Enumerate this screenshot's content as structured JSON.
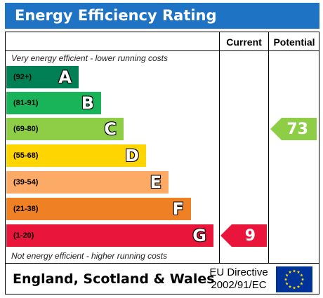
{
  "title": "Energy Efficiency Rating",
  "columns": {
    "current": "Current",
    "potential": "Potential"
  },
  "top_note": "Very energy efficient - lower running costs",
  "bottom_note": "Not energy efficient - higher running costs",
  "bands": [
    {
      "range": "(92+)",
      "letter": "A",
      "color": "#008054"
    },
    {
      "range": "(81-91)",
      "letter": "B",
      "color": "#19b459"
    },
    {
      "range": "(69-80)",
      "letter": "C",
      "color": "#8dce46"
    },
    {
      "range": "(55-68)",
      "letter": "D",
      "color": "#ffd500"
    },
    {
      "range": "(39-54)",
      "letter": "E",
      "color": "#fcaa65"
    },
    {
      "range": "(21-38)",
      "letter": "F",
      "color": "#ef8023"
    },
    {
      "range": "(1-20)",
      "letter": "G",
      "color": "#e9153b"
    }
  ],
  "current": {
    "value": "9",
    "band": "G",
    "color": "#e9153b"
  },
  "potential": {
    "value": "73",
    "band": "C",
    "color": "#8dce46"
  },
  "footer": {
    "country": "England, Scotland & Wales",
    "directive_line1": "EU Directive",
    "directive_line2": "2002/91/EC"
  },
  "colors": {
    "title_bar": "#1f73c4",
    "eu_flag": "#003399",
    "eu_star": "#ffdd00"
  }
}
